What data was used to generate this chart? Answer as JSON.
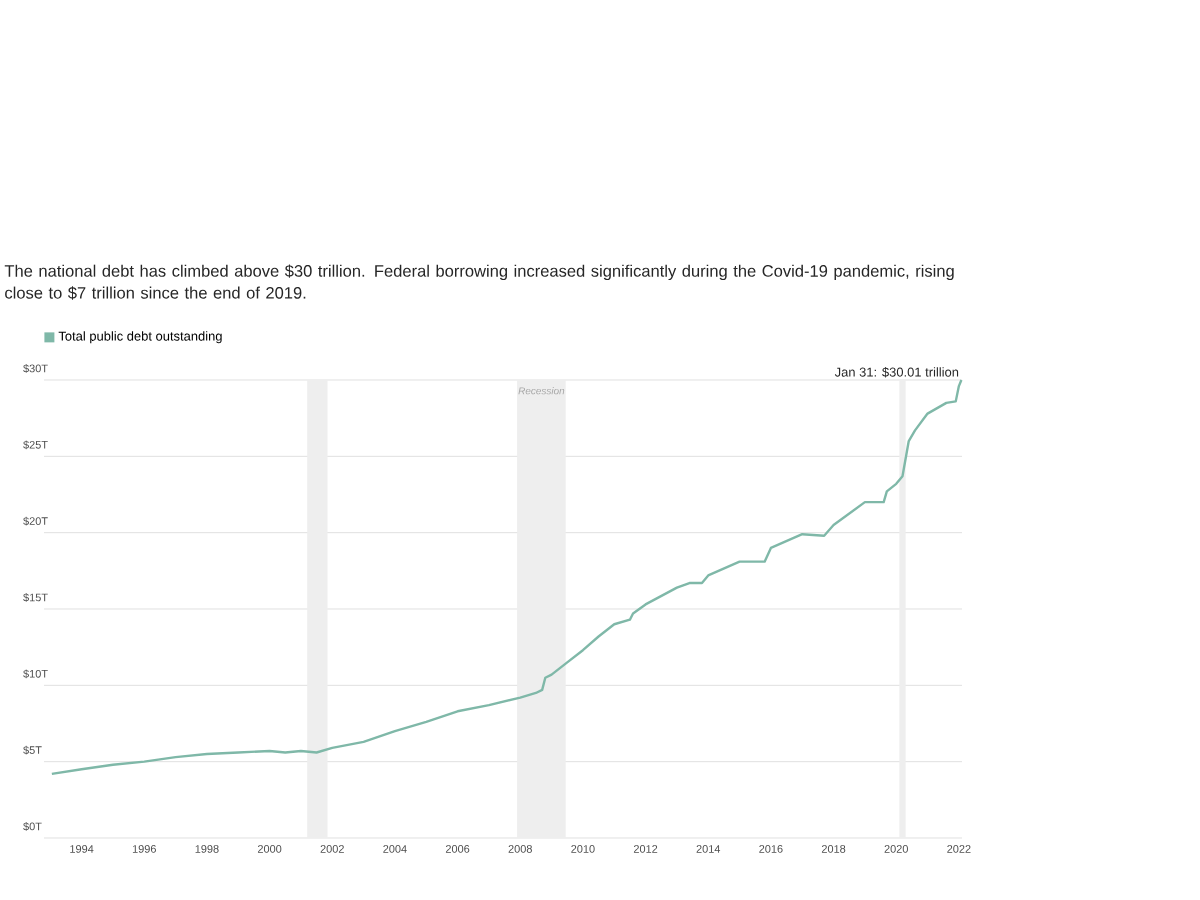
{
  "chart_data": {
    "type": "line",
    "title": "The national debt has climbed above $30 trillion. Federal borrowing increased significantly during the Covid-19 pandemic, rising close to $7 trillion since the end of 2019.",
    "series": [
      {
        "name": "Total public debt outstanding",
        "color": "#7fb8a8",
        "x": [
          1993.05,
          1994,
          1995,
          1996,
          1997,
          1998,
          1999,
          2000,
          2000.5,
          2001,
          2001.5,
          2002,
          2003,
          2004,
          2005,
          2006,
          2007,
          2008,
          2008.5,
          2008.7,
          2008.8,
          2009,
          2009.5,
          2010,
          2010.5,
          2011,
          2011.5,
          2011.6,
          2012,
          2013,
          2013.4,
          2013.8,
          2014,
          2015,
          2015.8,
          2016,
          2017,
          2017.7,
          2018,
          2019,
          2019.6,
          2019.7,
          2020,
          2020.2,
          2020.4,
          2020.6,
          2021,
          2021.6,
          2021.9,
          2022.0,
          2022.08
        ],
        "values": [
          4.2,
          4.5,
          4.8,
          5.0,
          5.3,
          5.5,
          5.6,
          5.7,
          5.6,
          5.7,
          5.6,
          5.9,
          6.3,
          7.0,
          7.6,
          8.3,
          8.7,
          9.2,
          9.5,
          9.7,
          10.5,
          10.7,
          11.5,
          12.3,
          13.2,
          14.0,
          14.3,
          14.7,
          15.3,
          16.4,
          16.7,
          16.7,
          17.2,
          18.1,
          18.1,
          19.0,
          19.9,
          19.8,
          20.5,
          22.0,
          22.0,
          22.7,
          23.2,
          23.7,
          26.0,
          26.7,
          27.8,
          28.5,
          28.6,
          29.6,
          30.0
        ]
      }
    ],
    "xlim": [
      1992.8,
      2022.1
    ],
    "xticks": [
      1994,
      1996,
      1998,
      2000,
      2002,
      2004,
      2006,
      2008,
      2010,
      2012,
      2014,
      2016,
      2018,
      2020,
      2022
    ],
    "ylim": [
      0,
      30
    ],
    "yticks": [
      {
        "value": 0,
        "label": "$0T"
      },
      {
        "value": 5,
        "label": "$5T"
      },
      {
        "value": 10,
        "label": "$10T"
      },
      {
        "value": 15,
        "label": "$15T"
      },
      {
        "value": 20,
        "label": "$20T"
      },
      {
        "value": 25,
        "label": "$25T"
      },
      {
        "value": 30,
        "label": "$30T"
      }
    ],
    "bands": [
      {
        "axis": "x",
        "from": 2001.2,
        "to": 2001.85,
        "color": "#eeeeee"
      },
      {
        "axis": "x",
        "from": 2007.9,
        "to": 2009.45,
        "label": "Recession",
        "color": "#eeeeee"
      },
      {
        "axis": "x",
        "from": 2020.1,
        "to": 2020.3,
        "color": "#eeeeee"
      }
    ],
    "annotations": [
      {
        "text": "Jan 31: $30.01 trillion",
        "x": 2022.08,
        "y": 30.01
      }
    ],
    "grid": "y",
    "legend": "top left"
  }
}
